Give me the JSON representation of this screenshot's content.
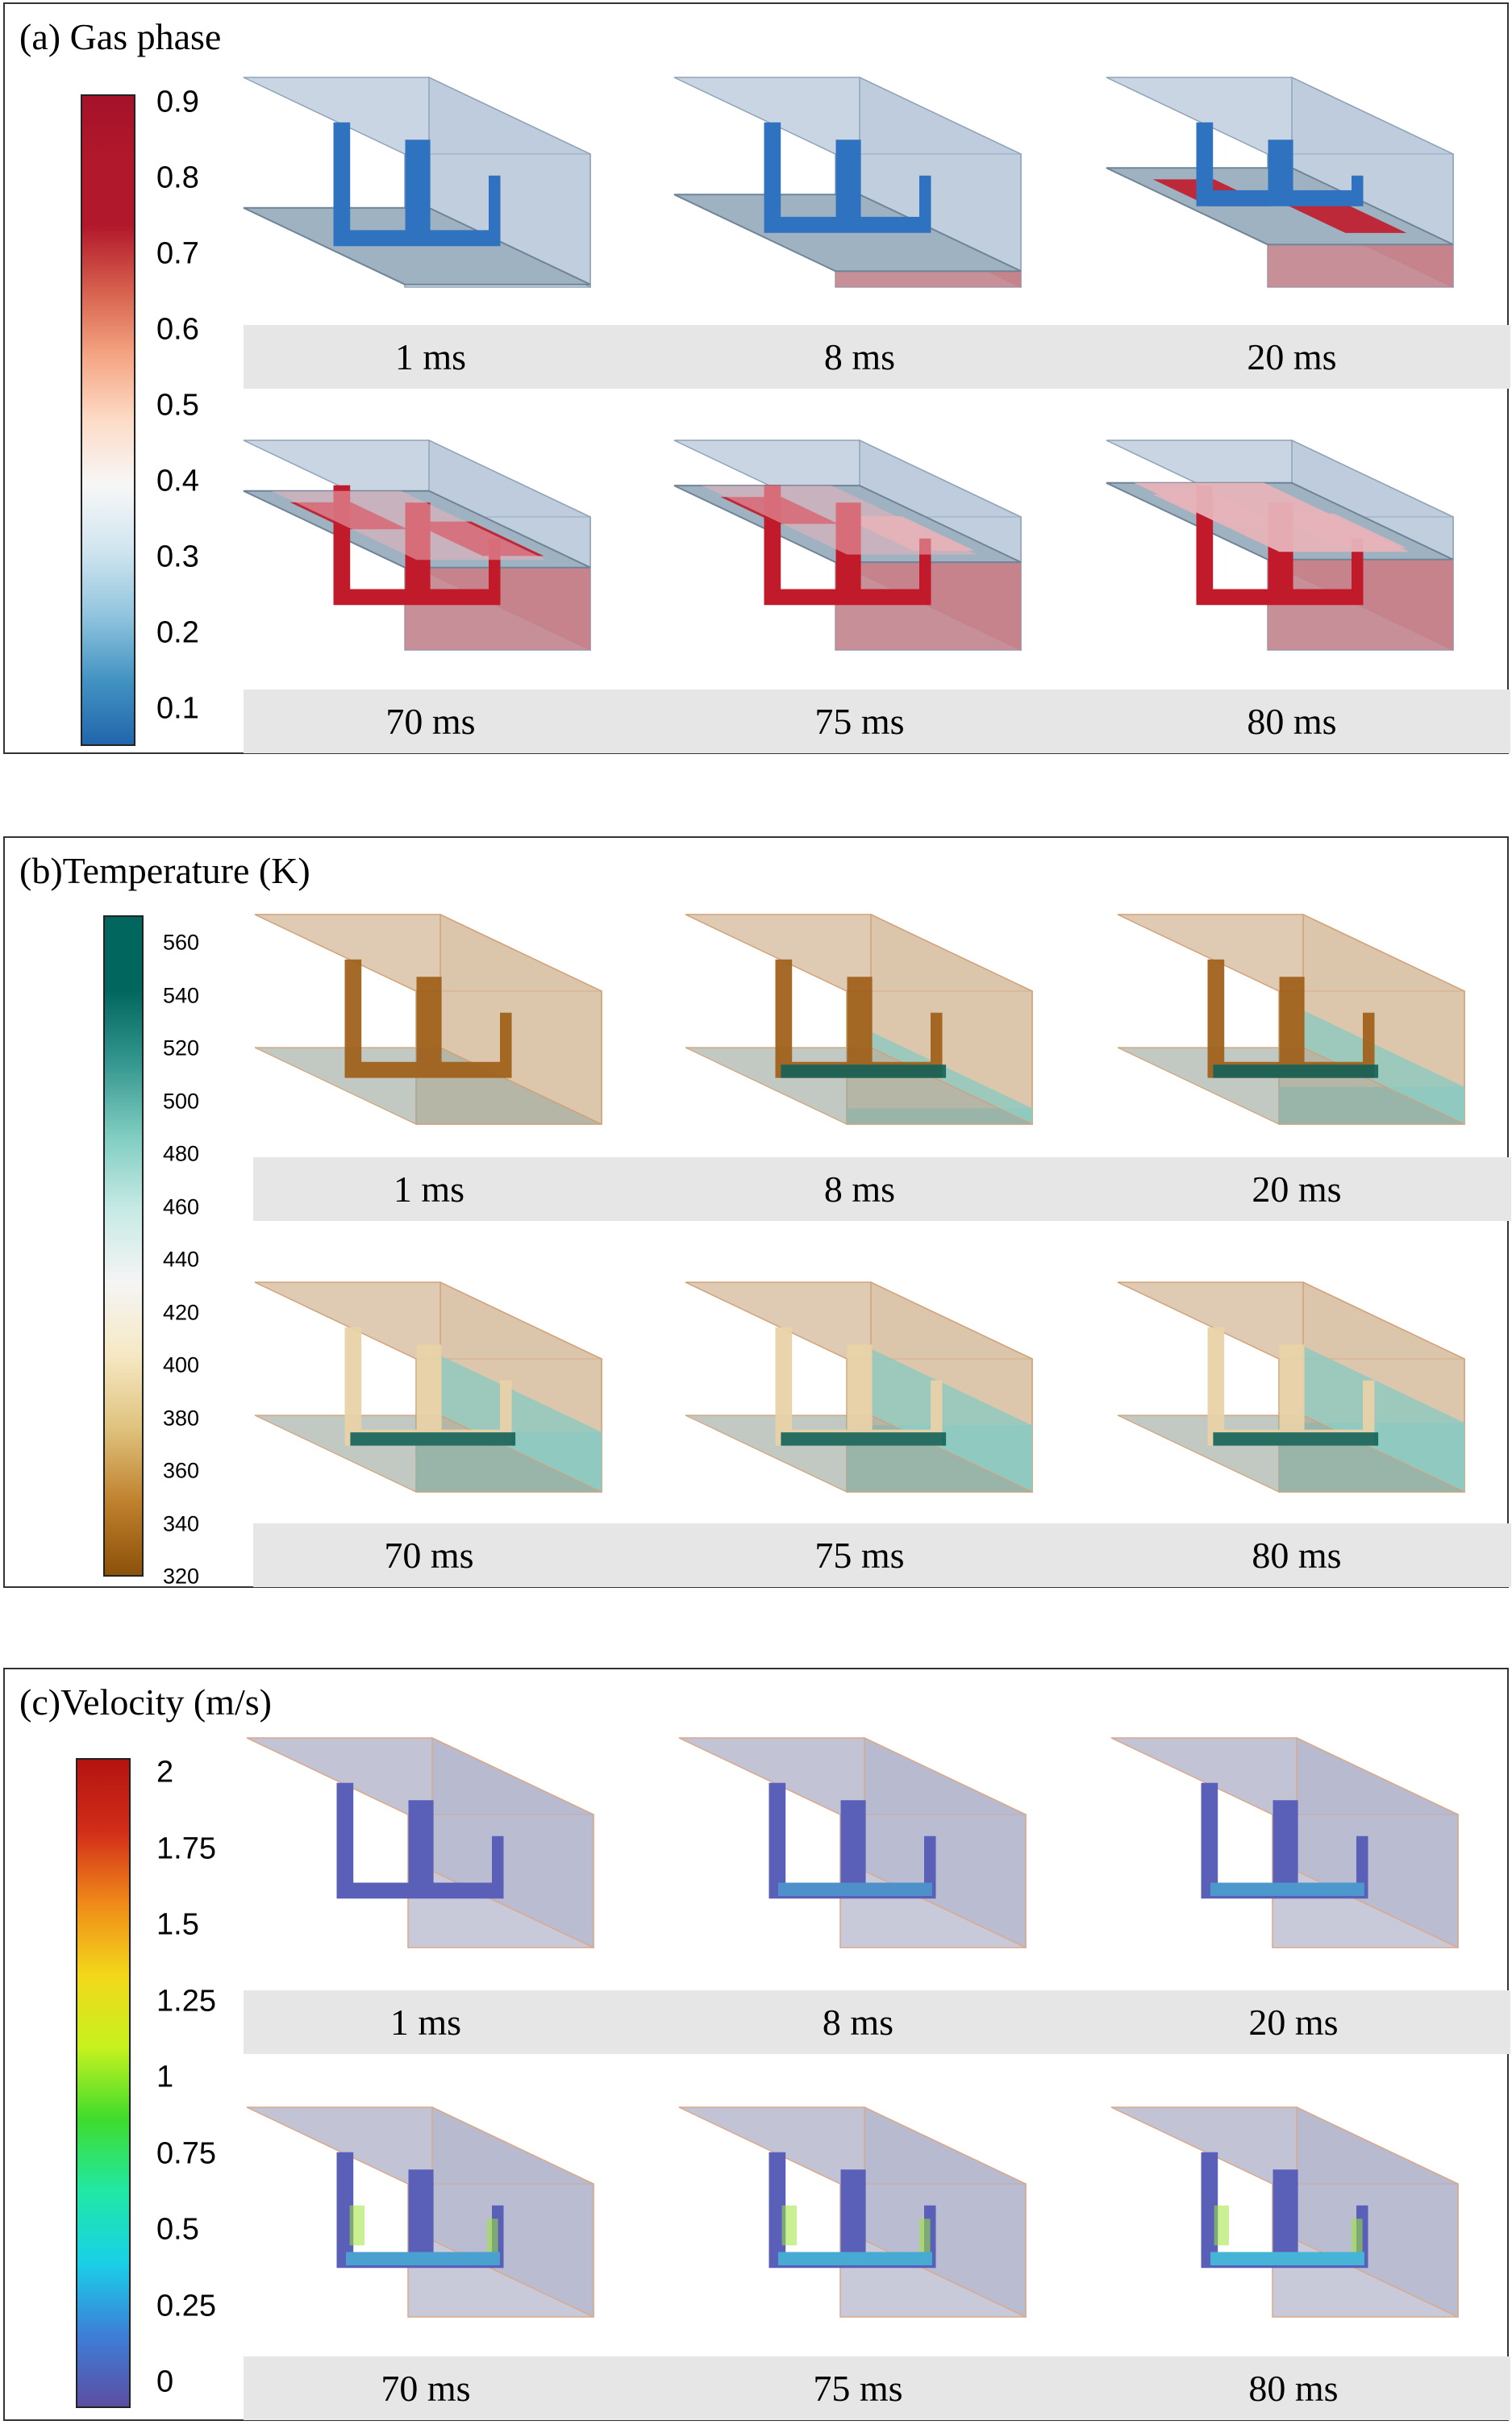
{
  "panels": [
    {
      "id": "a",
      "letter": "(a)",
      "title": "Gas phase",
      "colormap": [
        "#2166ac",
        "#4393c3",
        "#92c5de",
        "#d1e5f0",
        "#f7f7f7",
        "#fddbc7",
        "#f4a582",
        "#d6604d",
        "#b2182b",
        "#b2182b",
        "#a5122a"
      ],
      "colorbar_ticks": [
        "0.9",
        "0.8",
        "0.7",
        "0.6",
        "0.5",
        "0.4",
        "0.3",
        "0.2",
        "0.1"
      ],
      "time_rows": [
        [
          "1 ms",
          "8 ms",
          "20 ms"
        ],
        [
          "70 ms",
          "75 ms",
          "80 ms"
        ]
      ],
      "colors": {
        "box": "#b7c7d9",
        "box_edge": "#8fa3b8",
        "electrode": "#2f73c0",
        "liquid": "#9fb2c2",
        "gas": "#c6818a",
        "gas_bright": "#c11a2b",
        "pink": "#e7b3b9"
      }
    },
    {
      "id": "b",
      "letter": "(b)",
      "title": "Temperature (K)",
      "colormap": [
        "#8c510a",
        "#bf812d",
        "#dfc27d",
        "#f6e8c3",
        "#f5f5f5",
        "#c7eae5",
        "#80cdc1",
        "#35978f",
        "#01665e",
        "#01665e"
      ],
      "colorbar_ticks": [
        "560",
        "540",
        "520",
        "500",
        "480",
        "460",
        "440",
        "420",
        "400",
        "380",
        "360",
        "340",
        "320"
      ],
      "time_rows": [
        [
          "1 ms",
          "8 ms",
          "20 ms"
        ],
        [
          "70 ms",
          "75 ms",
          "80 ms"
        ]
      ],
      "colors": {
        "box": "#d9c2a6",
        "box_edge": "#d2a27a",
        "electrode": "#a0621c",
        "cool": "#8dc9c0",
        "dark_teal": "#13625a"
      }
    },
    {
      "id": "c",
      "letter": "(c)",
      "title": "Velocity (m/s)",
      "colormap": [
        "#5b4ea2",
        "#3d7fd8",
        "#19d0e8",
        "#21e8a4",
        "#3fdc2c",
        "#c7f21f",
        "#f3d81a",
        "#f08a19",
        "#d22d19",
        "#b3140f"
      ],
      "colorbar_ticks": [
        "2",
        "1.75",
        "1.5",
        "1.25",
        "1",
        "0.75",
        "0.5",
        "0.25",
        "0"
      ],
      "time_rows": [
        [
          "1 ms",
          "8 ms",
          "20 ms"
        ],
        [
          "70 ms",
          "75 ms",
          "80 ms"
        ]
      ],
      "colors": {
        "box": "#b3b5cc",
        "box_edge": "#d9a98c",
        "electrode": "#5a5fb8",
        "flow": "#3fd0e0",
        "hot": "#9ce63a"
      }
    }
  ]
}
